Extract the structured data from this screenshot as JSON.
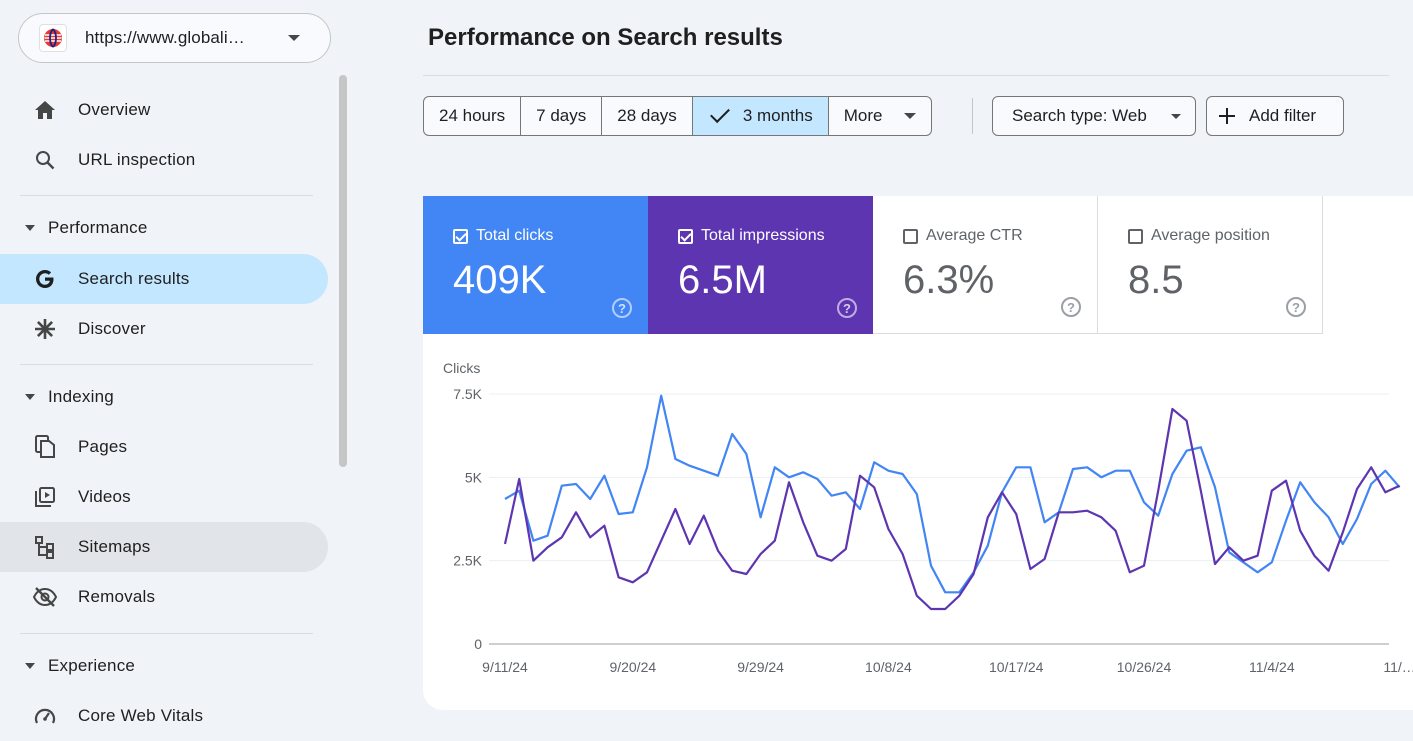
{
  "property": {
    "url": "https://www.globali…",
    "icon": "globe-flag-icon"
  },
  "nav": {
    "overview": "Overview",
    "url_inspection": "URL inspection",
    "performance": "Performance",
    "search_results": "Search results",
    "discover": "Discover",
    "indexing": "Indexing",
    "pages": "Pages",
    "videos": "Videos",
    "sitemaps": "Sitemaps",
    "removals": "Removals",
    "experience": "Experience",
    "core_web_vitals": "Core Web Vitals"
  },
  "page_title": "Performance on Search results",
  "date_range": {
    "options": [
      "24 hours",
      "7 days",
      "28 days",
      "3 months",
      "More"
    ],
    "selected": "3 months"
  },
  "filters": {
    "search_type": "Search type: Web",
    "add_filter": "Add filter"
  },
  "metrics": {
    "clicks": {
      "label": "Total clicks",
      "value": "409K",
      "checked": true,
      "color": "#4285f4"
    },
    "impressions": {
      "label": "Total impressions",
      "value": "6.5M",
      "checked": true,
      "color": "#5e35b1"
    },
    "ctr": {
      "label": "Average CTR",
      "value": "6.3%",
      "checked": false
    },
    "position": {
      "label": "Average position",
      "value": "8.5",
      "checked": false
    }
  },
  "chart_data": {
    "type": "line",
    "ylabel": "Clicks",
    "ylim": [
      0,
      7500
    ],
    "y_ticks": [
      "0",
      "2.5K",
      "5K",
      "7.5K"
    ],
    "x_tick_labels": [
      "9/11/24",
      "9/20/24",
      "9/29/24",
      "10/8/24",
      "10/17/24",
      "10/26/24",
      "11/4/24",
      "11/…"
    ],
    "x_start": "9/11/24",
    "series": [
      {
        "name": "Total clicks",
        "color": "#4285f4",
        "values": [
          4350,
          4600,
          3100,
          3250,
          4750,
          4800,
          4350,
          5050,
          3900,
          3950,
          5300,
          7450,
          5550,
          5350,
          5200,
          5050,
          6300,
          5700,
          3800,
          5300,
          5000,
          5150,
          4950,
          4450,
          4550,
          4050,
          5450,
          5200,
          5100,
          4500,
          2350,
          1550,
          1550,
          2150,
          2950,
          4550,
          5300,
          5300,
          3650,
          3950,
          5250,
          5300,
          5000,
          5200,
          5200,
          4250,
          3850,
          5100,
          5800,
          5900,
          4700,
          2750,
          2450,
          2150,
          2450,
          3700,
          4850,
          4250,
          3800,
          3000,
          3750,
          4800,
          5200,
          4700
        ]
      },
      {
        "name": "Total impressions",
        "color": "#5e35b1",
        "values": [
          3000,
          4950,
          2500,
          2900,
          3200,
          3950,
          3200,
          3550,
          2000,
          1850,
          2150,
          3100,
          4050,
          3000,
          3850,
          2800,
          2200,
          2100,
          2700,
          3100,
          4850,
          3650,
          2650,
          2500,
          2850,
          5050,
          4700,
          3450,
          2700,
          1450,
          1050,
          1050,
          1450,
          2100,
          3800,
          4550,
          3900,
          2250,
          2550,
          3950,
          3950,
          4000,
          3800,
          3400,
          2150,
          2350,
          4600,
          7050,
          6700,
          4600,
          2400,
          2900,
          2500,
          2650,
          4600,
          4900,
          3400,
          2650,
          2200,
          3350,
          4650,
          5300,
          4550,
          4750
        ]
      }
    ],
    "grid": true,
    "legend": "none"
  }
}
